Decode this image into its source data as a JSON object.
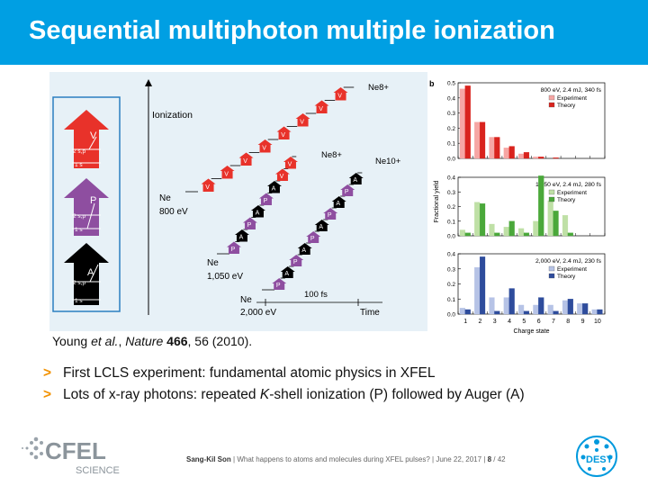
{
  "header": {
    "title": "Sequential multiphoton multiple ionization",
    "bg_color": "#009fe3"
  },
  "figure_a": {
    "mechanisms": [
      {
        "letter": "V",
        "shell_outer": "2 s,p",
        "shell_inner": "1 s",
        "color": "#e8322a"
      },
      {
        "letter": "P",
        "shell_outer": "2 s,p",
        "shell_inner": "1 s",
        "color": "#8e4ea0"
      },
      {
        "letter": "A",
        "shell_outer": "2 s,p",
        "shell_inner": "1 s",
        "color": "#000000"
      }
    ],
    "axis_label": "Ionization",
    "time_label": "Time",
    "time_scale": "100 fs",
    "start_labels": [
      {
        "species": "Ne",
        "energy": "800 eV"
      },
      {
        "species": "Ne",
        "energy": "1,050 eV"
      },
      {
        "species": "Ne",
        "energy": "2,000 eV"
      }
    ],
    "end_labels": [
      "Ne8+",
      "Ne8+",
      "Ne10+"
    ]
  },
  "chart_data": [
    {
      "type": "bar",
      "panel_label": "b",
      "title": "800 eV, 2.4 mJ, 340 fs",
      "categories": [
        "1",
        "2",
        "3",
        "4",
        "5",
        "6",
        "7",
        "8",
        "9",
        "10"
      ],
      "series": [
        {
          "name": "Experiment",
          "values": [
            0.46,
            0.24,
            0.14,
            0.07,
            0.03,
            0.01,
            0.0,
            0.0,
            0.0,
            0.0
          ]
        },
        {
          "name": "Theory",
          "values": [
            0.48,
            0.24,
            0.14,
            0.08,
            0.04,
            0.01,
            0.005,
            0.0,
            0.0,
            0.0
          ]
        }
      ],
      "ylim": [
        0,
        0.5
      ],
      "yticks": [
        "0.0",
        "0.1",
        "0.2",
        "0.3",
        "0.4",
        "0.5"
      ],
      "colors": {
        "Experiment": "#f6a6a4",
        "Theory": "#d9231d"
      }
    },
    {
      "type": "bar",
      "title": "1,050 eV, 2.4 mJ, 280 fs",
      "categories": [
        "1",
        "2",
        "3",
        "4",
        "5",
        "6",
        "7",
        "8",
        "9",
        "10"
      ],
      "series": [
        {
          "name": "Experiment",
          "values": [
            0.04,
            0.23,
            0.08,
            0.06,
            0.05,
            0.1,
            0.24,
            0.14,
            0.0,
            0.0
          ]
        },
        {
          "name": "Theory",
          "values": [
            0.02,
            0.22,
            0.02,
            0.1,
            0.02,
            0.41,
            0.17,
            0.02,
            0.0,
            0.0
          ]
        }
      ],
      "ylim": [
        0,
        0.4
      ],
      "yticks": [
        "0.0",
        "0.1",
        "0.2",
        "0.3",
        "0.4"
      ],
      "colors": {
        "Experiment": "#bfe0a6",
        "Theory": "#4aa83a"
      }
    },
    {
      "type": "bar",
      "title": "2,000 eV, 2.4 mJ, 230 fs",
      "categories": [
        "1",
        "2",
        "3",
        "4",
        "5",
        "6",
        "7",
        "8",
        "9",
        "10"
      ],
      "series": [
        {
          "name": "Experiment",
          "values": [
            0.04,
            0.31,
            0.11,
            0.11,
            0.06,
            0.06,
            0.06,
            0.09,
            0.07,
            0.03
          ]
        },
        {
          "name": "Theory",
          "values": [
            0.03,
            0.38,
            0.02,
            0.17,
            0.02,
            0.11,
            0.02,
            0.1,
            0.07,
            0.03
          ]
        }
      ],
      "ylim": [
        0,
        0.4
      ],
      "yticks": [
        "0.0",
        "0.1",
        "0.2",
        "0.3",
        "0.4"
      ],
      "colors": {
        "Experiment": "#b6c3e6",
        "Theory": "#2e4c9c"
      }
    }
  ],
  "chart_labels": {
    "ylabel": "Fractional yield",
    "xlabel": "Charge state"
  },
  "citation": {
    "authors": "Young ",
    "etal": "et al.",
    "journal_sep": ", ",
    "journal": "Nature",
    "volume": "466",
    "rest": ", 56 (2010)."
  },
  "bullets": [
    {
      "arrow": ">",
      "parts": [
        "First LCLS experiment: fundamental atomic physics in XFEL"
      ]
    },
    {
      "arrow": ">",
      "parts": [
        "Lots of x-ray photons: repeated ",
        "K",
        "-shell ionization (P) followed by Auger (A)"
      ]
    }
  ],
  "footer": {
    "logo_main": "CFEL",
    "logo_sub": "SCIENCE",
    "author": "Sang-Kil Son",
    "sep1": " | ",
    "talk": "What happens to atoms and molecules during XFEL pulses?",
    "sep2": " | ",
    "date": "June 22, 2017",
    "sep3": " | ",
    "page": "8",
    "total": " / 42",
    "desy": "DESY"
  }
}
